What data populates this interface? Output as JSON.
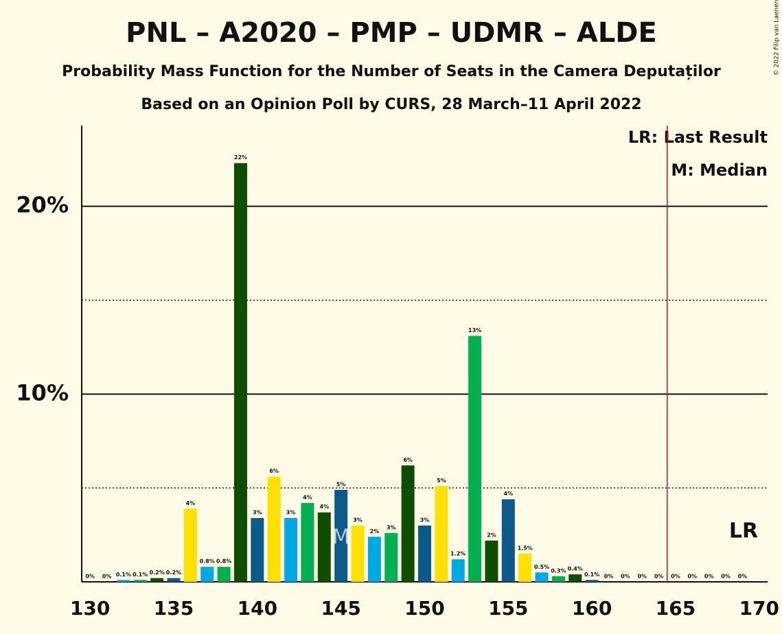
{
  "chart_data": {
    "type": "bar",
    "title": "PNL – A2020 – PMP – UDMR – ALDE",
    "subtitle": "Probability Mass Function for the Number of Seats in the Camera Deputaților",
    "subtitle2": "Based on an Opinion Poll by CURS, 28 March–11 April 2022",
    "copyright": "© 2022 Filip van Laenen",
    "x": [
      130,
      131,
      132,
      133,
      134,
      135,
      136,
      137,
      138,
      139,
      140,
      141,
      142,
      143,
      144,
      145,
      146,
      147,
      148,
      149,
      150,
      151,
      152,
      153,
      154,
      155,
      156,
      157,
      158,
      159,
      160,
      161,
      162,
      163,
      164,
      165,
      166,
      167,
      168,
      169
    ],
    "values": [
      0,
      0,
      0.1,
      0.1,
      0.2,
      0.2,
      3.9,
      0.8,
      0.8,
      22.3,
      3.4,
      5.6,
      3.4,
      4.2,
      3.7,
      4.9,
      3.0,
      2.4,
      2.6,
      6.2,
      3.0,
      5.1,
      1.2,
      13.1,
      2.2,
      4.4,
      1.5,
      0.5,
      0.3,
      0.4,
      0.1,
      0,
      0,
      0,
      0,
      0,
      0,
      0,
      0,
      0
    ],
    "value_labels": [
      "0%",
      "0%",
      "0.1%",
      "0.1%",
      "0.2%",
      "0.2%",
      "4%",
      "0.8%",
      "0.8%",
      "22%",
      "3%",
      "6%",
      "3%",
      "4%",
      "4%",
      "5%",
      "3%",
      "2%",
      "3%",
      "6%",
      "3%",
      "5%",
      "1.2%",
      "13%",
      "2%",
      "4%",
      "1.5%",
      "0.5%",
      "0.3%",
      "0.4%",
      "0.1%",
      "0%",
      "0%",
      "0%",
      "0%",
      "0%",
      "0%",
      "0%",
      "0%",
      "0%"
    ],
    "colors": [
      "#0b5a8a",
      "#ffe000",
      "#00a8e6",
      "#00b050",
      "#0f4d00"
    ],
    "xlim": [
      129.5,
      170.5
    ],
    "xticks": [
      130,
      135,
      140,
      145,
      150,
      155,
      160,
      165,
      170
    ],
    "ylim": [
      0,
      24.3
    ],
    "yticks": [
      {
        "value": 10,
        "label": "10%"
      },
      {
        "value": 20,
        "label": "20%"
      }
    ],
    "minor_yticks": [
      5,
      15
    ],
    "median": 145,
    "median_label": "M",
    "last_result": 165,
    "last_result_label": "LR",
    "legend": [
      "LR: Last Result",
      "M: Median"
    ]
  }
}
